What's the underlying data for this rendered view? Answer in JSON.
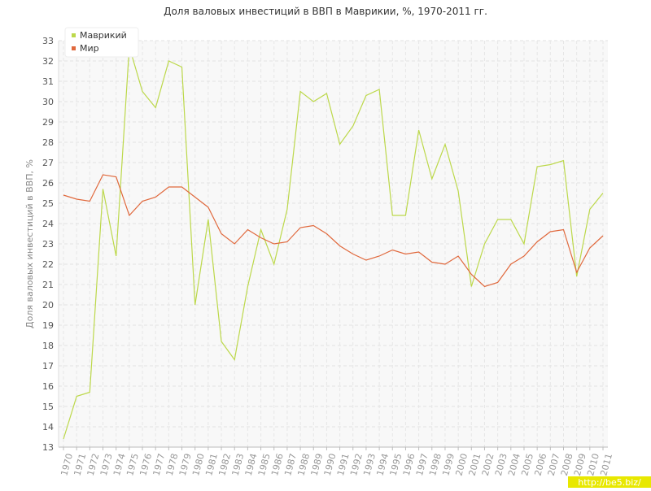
{
  "chart_data": {
    "type": "line",
    "title": "Доля валовых инвестиций в ВВП в Маврикии, %, 1970-2011 гг.",
    "y_label": "Доля валовых инвестиций в ВВП, %",
    "watermark": "http://be5.biz/",
    "categories": [
      "1970",
      "1971",
      "1972",
      "1973",
      "1974",
      "1975",
      "1976",
      "1977",
      "1978",
      "1979",
      "1980",
      "1981",
      "1982",
      "1983",
      "1984",
      "1985",
      "1986",
      "1987",
      "1988",
      "1989",
      "1990",
      "1991",
      "1992",
      "1993",
      "1994",
      "1995",
      "1996",
      "1997",
      "1998",
      "1999",
      "2000",
      "2001",
      "2002",
      "2003",
      "2004",
      "2005",
      "2006",
      "2007",
      "2008",
      "2009",
      "2010",
      "2011"
    ],
    "series": [
      {
        "name": "Маврикий",
        "color": "#bcd84a",
        "values": [
          13.4,
          15.5,
          15.7,
          25.7,
          22.4,
          32.7,
          30.5,
          29.7,
          32.0,
          31.7,
          20.0,
          24.2,
          18.2,
          17.3,
          20.9,
          23.7,
          22.0,
          24.7,
          30.5,
          30.0,
          30.4,
          27.9,
          28.8,
          30.3,
          30.6,
          24.4,
          24.4,
          28.6,
          26.2,
          27.9,
          25.6,
          20.9,
          23.0,
          24.2,
          24.2,
          23.0,
          26.8,
          26.9,
          27.1,
          21.4,
          24.7,
          25.5
        ]
      },
      {
        "name": "Мир",
        "color": "#e0683c",
        "values": [
          25.4,
          25.2,
          25.1,
          26.4,
          26.3,
          24.4,
          25.1,
          25.3,
          25.8,
          25.8,
          25.3,
          24.8,
          23.5,
          23.0,
          23.7,
          23.3,
          23.0,
          23.1,
          23.8,
          23.9,
          23.5,
          22.9,
          22.5,
          22.2,
          22.4,
          22.7,
          22.5,
          22.6,
          22.1,
          22.0,
          22.4,
          21.5,
          20.9,
          21.1,
          22.0,
          22.4,
          23.1,
          23.6,
          23.7,
          21.6,
          22.8,
          23.4
        ]
      }
    ],
    "ylim": [
      13,
      33
    ],
    "yticks": [
      13,
      14,
      15,
      16,
      17,
      18,
      19,
      20,
      21,
      22,
      23,
      24,
      25,
      26,
      27,
      28,
      29,
      30,
      31,
      32,
      33
    ],
    "grid": true,
    "legend": "top-left"
  }
}
